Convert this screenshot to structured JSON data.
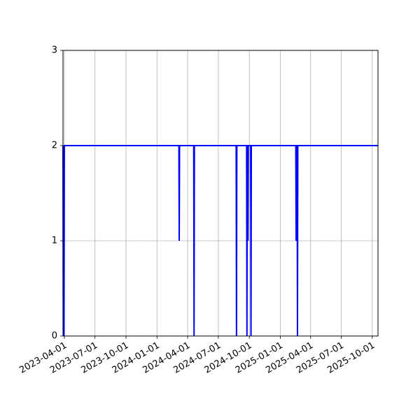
{
  "chart_data": {
    "type": "line",
    "title": "",
    "xlabel": "",
    "ylabel": "",
    "x_axis": "date",
    "xlim": [
      "2023-03-28",
      "2025-10-18"
    ],
    "ylim": [
      0,
      3
    ],
    "grid": true,
    "legend": "none",
    "x_ticks": [
      "2023-04-01",
      "2023-07-01",
      "2023-10-01",
      "2024-01-01",
      "2024-04-01",
      "2024-07-01",
      "2024-10-01",
      "2025-01-01",
      "2025-04-01",
      "2025-07-01",
      "2025-10-01"
    ],
    "y_ticks": [
      0,
      1,
      2,
      3
    ],
    "series": [
      {
        "color": "#0000ff",
        "x": [
          "2023-03-28",
          "2023-03-29",
          "2023-03-30",
          "2023-03-31",
          "2023-04-01",
          "2024-03-06",
          "2024-03-07",
          "2024-03-08",
          "2024-04-19",
          "2024-04-20",
          "2024-04-21",
          "2024-08-23",
          "2024-08-24",
          "2024-08-25",
          "2024-09-23",
          "2024-09-24",
          "2024-09-25",
          "2024-09-26",
          "2024-09-27",
          "2024-09-28",
          "2024-10-05",
          "2024-10-06",
          "2024-10-07",
          "2025-02-16",
          "2025-02-17",
          "2025-02-18",
          "2025-02-19",
          "2025-02-20",
          "2025-02-21",
          "2025-02-22",
          "2025-10-18"
        ],
        "y": [
          2,
          0,
          2,
          0,
          2,
          2,
          1,
          2,
          2,
          0,
          2,
          2,
          0,
          2,
          2,
          0,
          2,
          2,
          1,
          2,
          2,
          0,
          2,
          2,
          1,
          2,
          2,
          2,
          0,
          2,
          2
        ]
      }
    ]
  }
}
